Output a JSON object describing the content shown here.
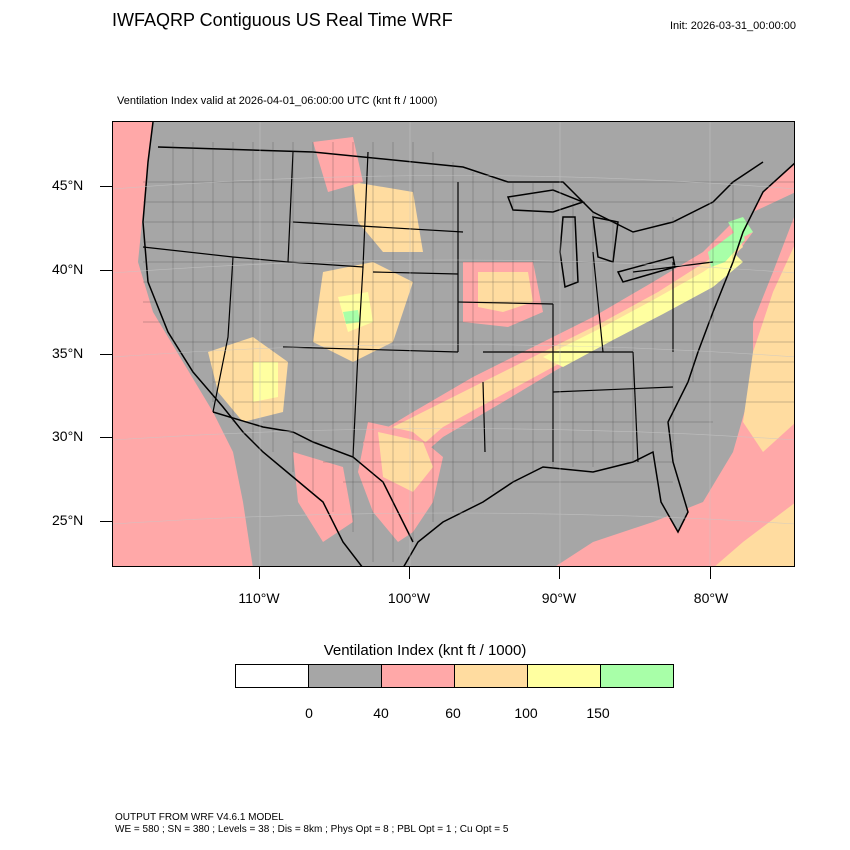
{
  "title": "IWFAQRP Contiguous US Real Time WRF",
  "init": "Init: 2026-03-31_00:00:00",
  "subtitle": "Ventilation Index valid at 2026-04-01_06:00:00 UTC   (knt ft / 1000)",
  "map": {
    "lat_labels": [
      "45°N",
      "40°N",
      "35°N",
      "30°N",
      "25°N"
    ],
    "lon_labels": [
      "110°W",
      "100°W",
      "90°W",
      "80°W"
    ],
    "colors": {
      "ocean_low": "#ffa8a8",
      "land_low": "#a6a6a6",
      "moderate": "#ffdca0",
      "high": "#ffffa0",
      "very_high": "#a8ffa8",
      "borders": "#000000"
    }
  },
  "legend": {
    "title": "Ventilation Index  (knt ft / 1000)",
    "colors": [
      "#ffffff",
      "#a6a6a6",
      "#ffa8a8",
      "#ffdca0",
      "#ffffa0",
      "#a8ffa8"
    ],
    "ticks": [
      "0",
      "40",
      "60",
      "100",
      "150"
    ]
  },
  "footer": {
    "line1": "OUTPUT FROM WRF V4.6.1 MODEL",
    "line2": "WE = 580 ; SN = 380 ; Levels = 38 ; Dis = 8km ; Phys Opt = 8 ; PBL Opt = 1 ; Cu Opt = 5"
  }
}
